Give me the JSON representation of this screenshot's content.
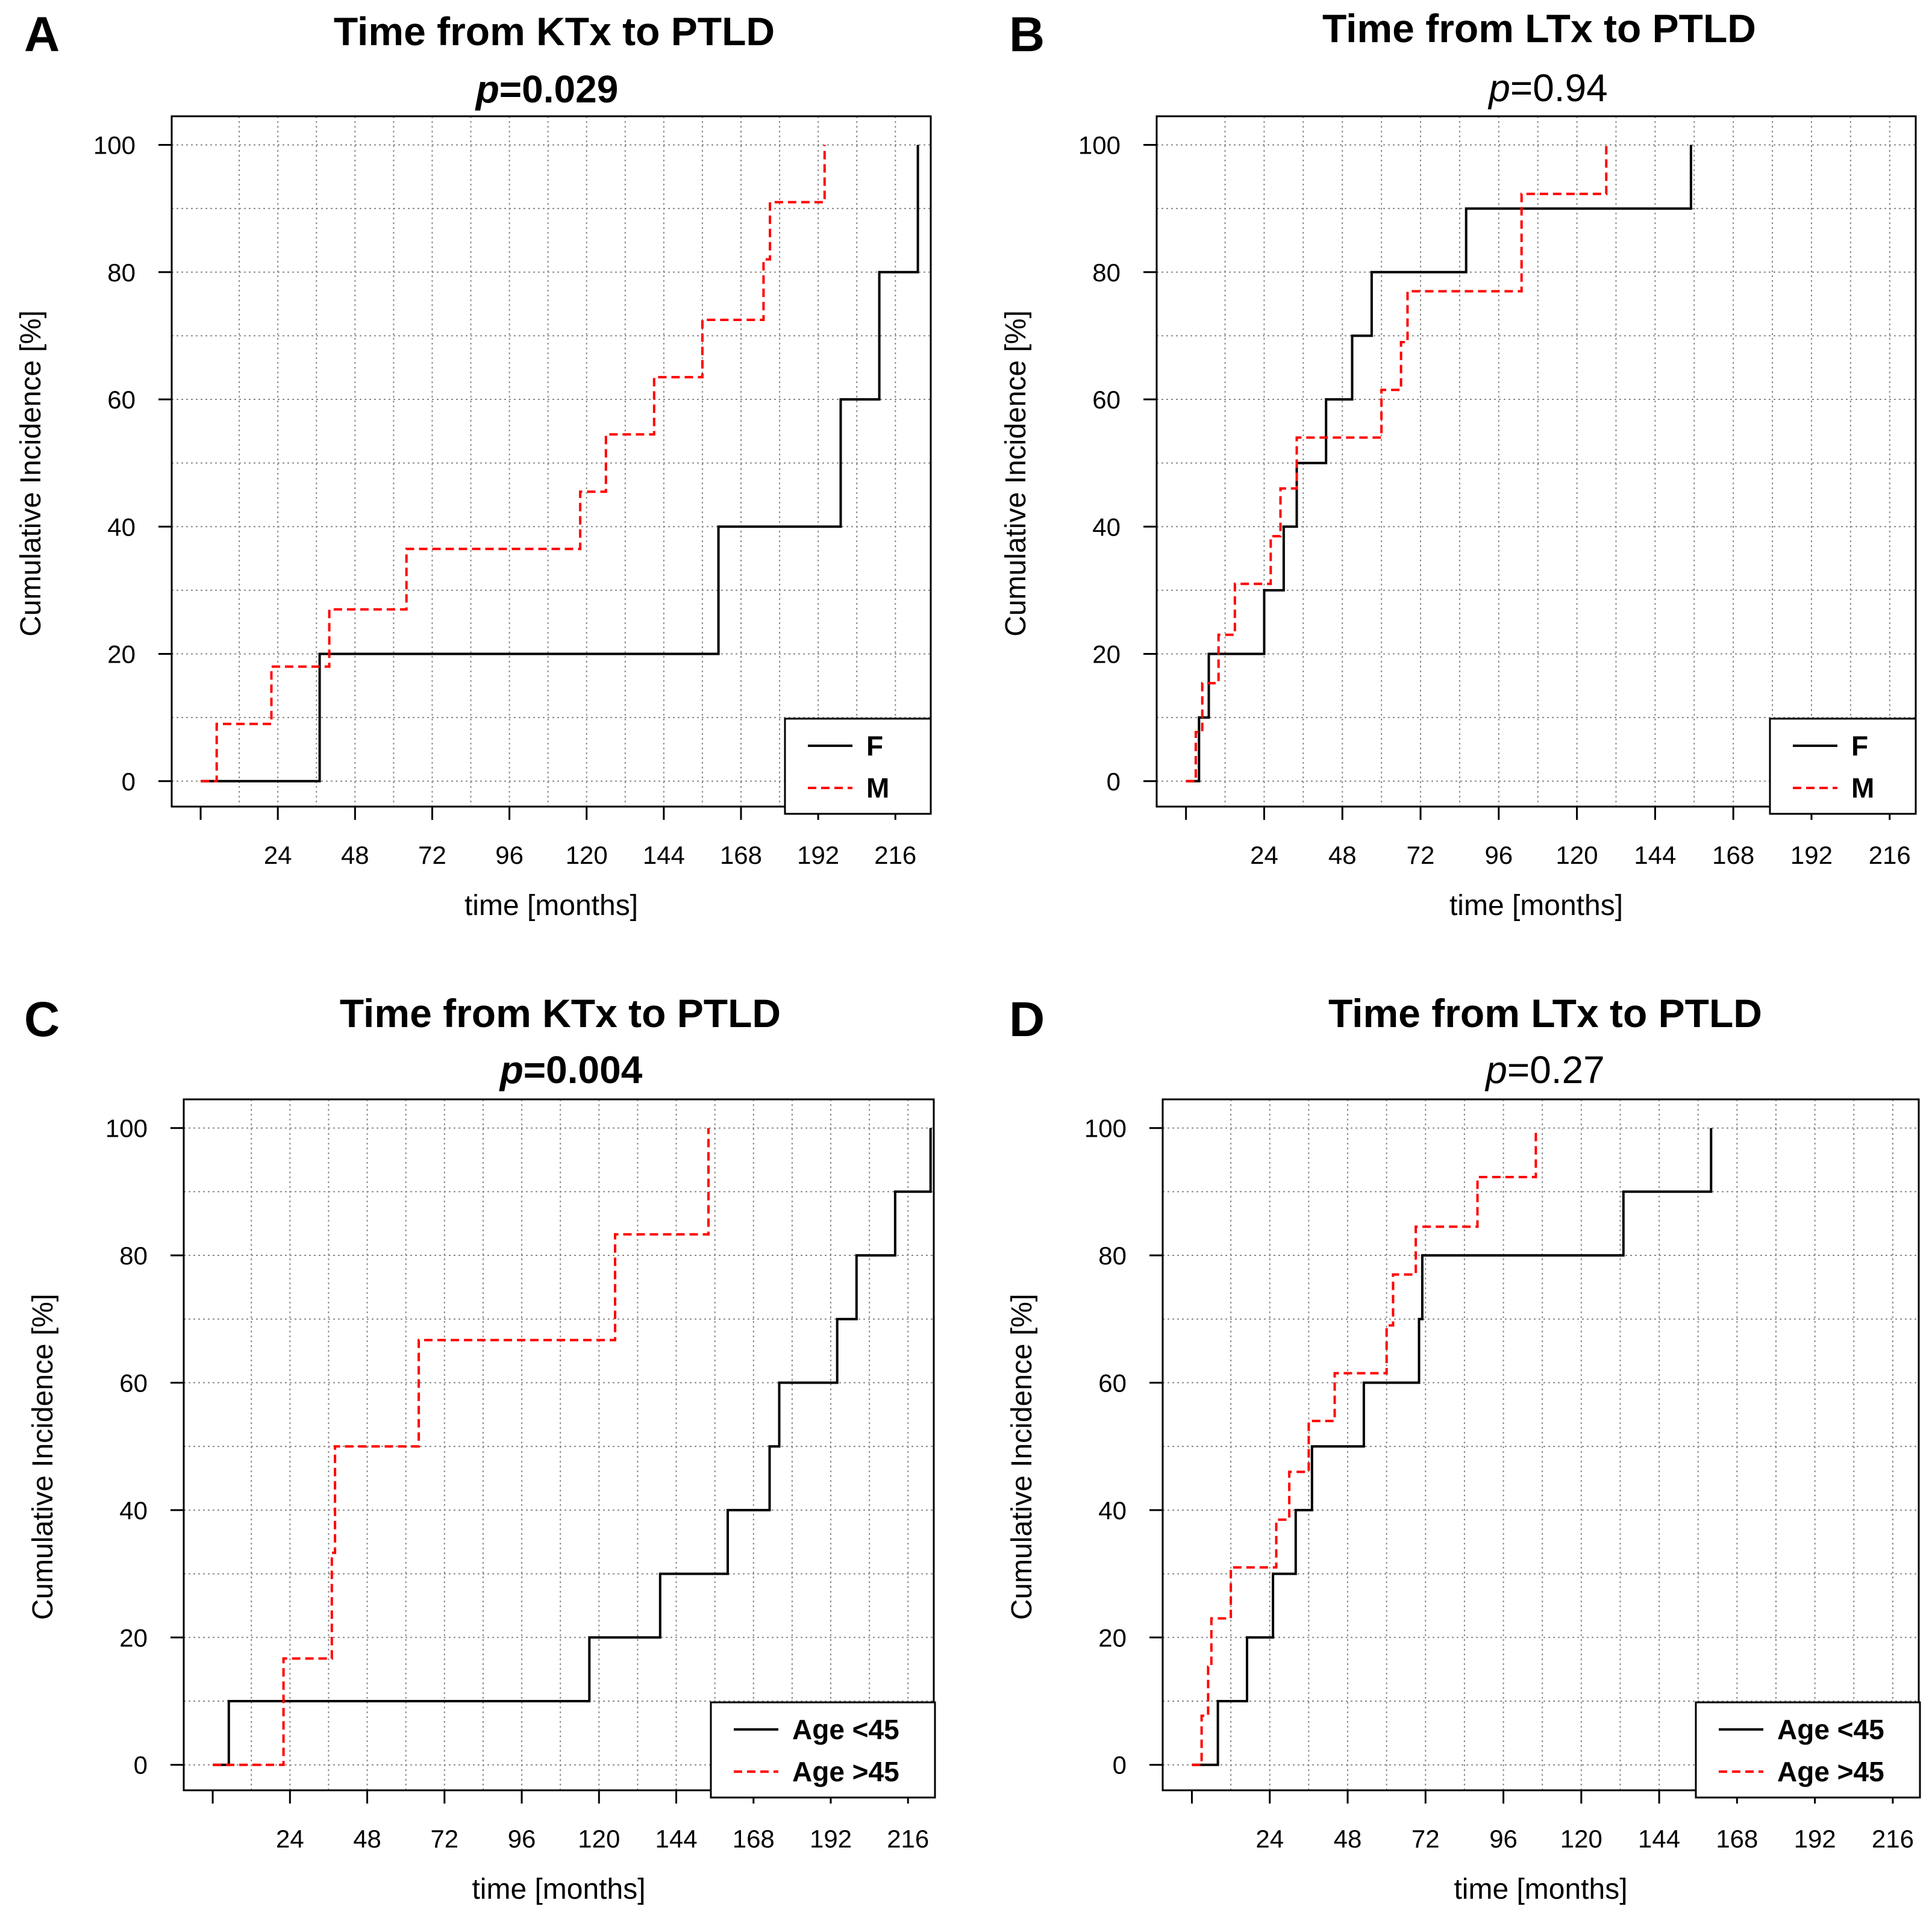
{
  "figure": {
    "layout": "2x2 grid",
    "panels": [
      "A",
      "B",
      "C",
      "D"
    ]
  },
  "chart_data": [
    {
      "panel": "A",
      "type": "line",
      "step": true,
      "title": "Time from KTx to PTLD",
      "p_label": "p",
      "p_value": "=0.029",
      "p_bold": true,
      "xlabel": "time [months]",
      "ylabel": "Cumulative Incidence [%]",
      "xlim": [
        -9,
        227
      ],
      "ylim": [
        -4,
        104.5
      ],
      "xticks": [
        24,
        48,
        72,
        96,
        120,
        144,
        168,
        192,
        216
      ],
      "yticks": [
        0,
        20,
        40,
        60,
        80,
        100
      ],
      "grid": true,
      "legend": {
        "position": "bottom-right",
        "entries": [
          "F",
          "M"
        ]
      },
      "series": [
        {
          "name": "F",
          "color": "#000000",
          "dash": "solid",
          "x": [
            0,
            37,
            37,
            161,
            161,
            199,
            199,
            211,
            211,
            223,
            223
          ],
          "y": [
            0,
            0,
            20,
            20,
            40,
            40,
            60,
            60,
            80,
            80,
            100
          ]
        },
        {
          "name": "M",
          "color": "#ff0000",
          "dash": "dashed",
          "x": [
            0,
            5,
            5,
            22,
            22,
            40,
            40,
            64,
            64,
            118,
            118,
            126,
            126,
            141,
            141,
            156,
            156,
            175,
            175,
            177,
            177,
            194,
            194
          ],
          "y": [
            0,
            0,
            9,
            9,
            18,
            18,
            27,
            27,
            36.5,
            36.5,
            45.5,
            45.5,
            54.5,
            54.5,
            63.5,
            63.5,
            72.5,
            72.5,
            82,
            82,
            91,
            91,
            100
          ]
        }
      ]
    },
    {
      "panel": "B",
      "type": "line",
      "step": true,
      "title": "Time from LTx to PTLD",
      "p_label": "p",
      "p_value": "=0.94",
      "p_bold": false,
      "xlabel": "time [months]",
      "ylabel": "Cumulative Incidence [%]",
      "xlim": [
        -9,
        224
      ],
      "ylim": [
        -4,
        104.5
      ],
      "xticks": [
        24,
        48,
        72,
        96,
        120,
        144,
        168,
        192,
        216
      ],
      "yticks": [
        0,
        20,
        40,
        60,
        80,
        100
      ],
      "grid": true,
      "legend": {
        "position": "bottom-right",
        "entries": [
          "F",
          "M"
        ]
      },
      "series": [
        {
          "name": "F",
          "color": "#000000",
          "dash": "solid",
          "x": [
            0,
            4,
            4,
            7,
            7,
            24,
            24,
            30,
            30,
            34,
            34,
            43,
            43,
            51,
            51,
            57,
            57,
            86,
            86,
            155,
            155
          ],
          "y": [
            0,
            0,
            10,
            10,
            20,
            20,
            30,
            30,
            40,
            40,
            50,
            50,
            60,
            60,
            70,
            70,
            80,
            80,
            90,
            90,
            100
          ]
        },
        {
          "name": "M",
          "color": "#ff0000",
          "dash": "dashed",
          "x": [
            0,
            3,
            3,
            5,
            5,
            10,
            10,
            15,
            15,
            26,
            26,
            29,
            29,
            34,
            34,
            60,
            60,
            66,
            66,
            68,
            68,
            103,
            103,
            129,
            129
          ],
          "y": [
            0,
            0,
            7.7,
            7.7,
            15.4,
            15.4,
            23,
            23,
            31,
            31,
            38.5,
            38.5,
            46,
            46,
            54,
            54,
            61.5,
            61.5,
            69,
            69,
            77,
            77,
            92.3,
            92.3,
            100
          ]
        }
      ]
    },
    {
      "panel": "C",
      "type": "line",
      "step": true,
      "title": "Time from KTx to PTLD",
      "p_label": "p",
      "p_value": "=0.004",
      "p_bold": true,
      "xlabel": "time [months]",
      "ylabel": "Cumulative Incidence [%]",
      "xlim": [
        -9,
        224
      ],
      "ylim": [
        -4,
        104.5
      ],
      "xticks": [
        24,
        48,
        72,
        96,
        120,
        144,
        168,
        192,
        216
      ],
      "yticks": [
        0,
        20,
        40,
        60,
        80,
        100
      ],
      "grid": true,
      "legend": {
        "position": "bottom-right",
        "entries": [
          "Age <45",
          "Age >45"
        ]
      },
      "series": [
        {
          "name": "Age <45",
          "color": "#000000",
          "dash": "solid",
          "x": [
            0,
            5,
            5,
            117,
            117,
            139,
            139,
            160,
            160,
            173,
            173,
            176,
            176,
            194,
            194,
            200,
            200,
            212,
            212,
            223,
            223
          ],
          "y": [
            0,
            0,
            10,
            10,
            20,
            20,
            30,
            30,
            40,
            40,
            50,
            50,
            60,
            60,
            70,
            70,
            80,
            80,
            90,
            90,
            100
          ]
        },
        {
          "name": "Age >45",
          "color": "#ff0000",
          "dash": "dashed",
          "x": [
            0,
            22,
            22,
            37,
            37,
            38,
            38,
            64,
            64,
            125,
            125,
            154,
            154
          ],
          "y": [
            0,
            0,
            16.7,
            16.7,
            33.3,
            33.3,
            50,
            50,
            66.7,
            66.7,
            83.3,
            83.3,
            100
          ]
        }
      ]
    },
    {
      "panel": "D",
      "type": "line",
      "step": true,
      "title": "Time from LTx to PTLD",
      "p_label": "p",
      "p_value": "=0.27",
      "p_bold": false,
      "xlabel": "time [months]",
      "ylabel": "Cumulative Incidence [%]",
      "xlim": [
        -9,
        224
      ],
      "ylim": [
        -4,
        104.5
      ],
      "xticks": [
        24,
        48,
        72,
        96,
        120,
        144,
        168,
        192,
        216
      ],
      "yticks": [
        0,
        20,
        40,
        60,
        80,
        100
      ],
      "grid": true,
      "legend": {
        "position": "bottom-right",
        "entries": [
          "Age <45",
          "Age >45"
        ]
      },
      "series": [
        {
          "name": "Age <45",
          "color": "#000000",
          "dash": "solid",
          "x": [
            0,
            8,
            8,
            17,
            17,
            25,
            25,
            32,
            32,
            37,
            37,
            53,
            53,
            70,
            70,
            71,
            71,
            133,
            133,
            160,
            160
          ],
          "y": [
            0,
            0,
            10,
            10,
            20,
            20,
            30,
            30,
            40,
            40,
            50,
            50,
            60,
            60,
            70,
            70,
            80,
            80,
            90,
            90,
            100
          ]
        },
        {
          "name": "Age >45",
          "color": "#ff0000",
          "dash": "dashed",
          "x": [
            0,
            3,
            3,
            5,
            5,
            6,
            6,
            12,
            12,
            26,
            26,
            30,
            30,
            36,
            36,
            44,
            44,
            60,
            60,
            62,
            62,
            69,
            69,
            88,
            88,
            106,
            106
          ],
          "y": [
            0,
            0,
            7.7,
            7.7,
            15.4,
            15.4,
            23,
            23,
            31,
            31,
            38.5,
            38.5,
            46,
            46,
            54,
            54,
            61.5,
            61.5,
            69,
            69,
            77,
            77,
            84.5,
            84.5,
            92.3,
            92.3,
            100
          ]
        }
      ]
    }
  ]
}
